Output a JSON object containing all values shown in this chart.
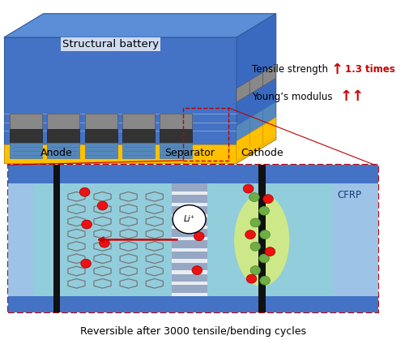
{
  "fig_width": 5.0,
  "fig_height": 4.19,
  "dpi": 100,
  "bg_color": "#ffffff",
  "title_text": "Reversible after 3000 tensile/bending cycles",
  "title_fontsize": 9.0,
  "structural_battery_label": "Structural battery",
  "tensile_text": "Tensile strength",
  "tensile_value": "1.3 times",
  "youngs_text": "Young’s modulus",
  "anode_label": "Anode",
  "separator_label": "Separator",
  "cathode_label": "Cathode",
  "cfrp_label": "CFRP",
  "li_label": "Li⁺",
  "blue_main": "#4472c4",
  "blue_face": "#5b8ed6",
  "blue_right": "#3a6abf",
  "blue_light": "#9dc3e6",
  "teal_light": "#92cddc",
  "yellow_color": "#ffc000",
  "red_arrow": "#cc0000",
  "red_dashed": "#c00000",
  "separator_stripe_color": "#8888bb",
  "graphene_color": "#777777",
  "green_dot": "#70ad47",
  "red_dot": "#ee1111",
  "black_electrode": "#111111",
  "yellow_glow": "#ffff44",
  "cell_gray": "#888888",
  "cell_black": "#333333",
  "cell_blue": "#5588bb"
}
